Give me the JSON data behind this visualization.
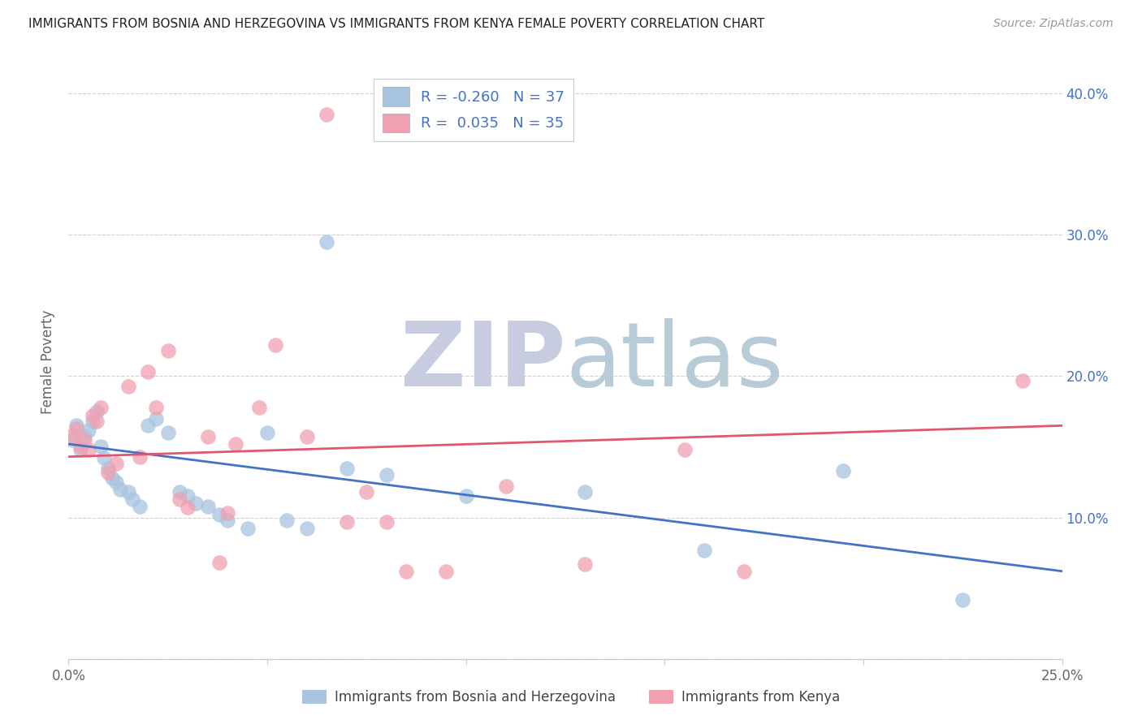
{
  "title": "IMMIGRANTS FROM BOSNIA AND HERZEGOVINA VS IMMIGRANTS FROM KENYA FEMALE POVERTY CORRELATION CHART",
  "source": "Source: ZipAtlas.com",
  "xlabel_bosnia": "Immigrants from Bosnia and Herzegovina",
  "xlabel_kenya": "Immigrants from Kenya",
  "ylabel": "Female Poverty",
  "xlim": [
    0,
    0.25
  ],
  "ylim": [
    0,
    0.42
  ],
  "xticks": [
    0.0,
    0.05,
    0.1,
    0.15,
    0.2,
    0.25
  ],
  "xtick_labels": [
    "0.0%",
    "",
    "",
    "",
    "",
    "25.0%"
  ],
  "yticks": [
    0.0,
    0.1,
    0.2,
    0.3,
    0.4
  ],
  "ytick_labels": [
    "",
    "10.0%",
    "20.0%",
    "30.0%",
    "40.0%"
  ],
  "R_bosnia": -0.26,
  "N_bosnia": 37,
  "R_kenya": 0.035,
  "N_kenya": 35,
  "color_bosnia": "#a8c4e0",
  "color_kenya": "#f0a0b0",
  "line_color_bosnia": "#4472c4",
  "line_color_kenya": "#e05870",
  "bosnia_x": [
    0.001,
    0.002,
    0.003,
    0.004,
    0.005,
    0.006,
    0.007,
    0.008,
    0.009,
    0.01,
    0.011,
    0.012,
    0.013,
    0.015,
    0.016,
    0.018,
    0.02,
    0.022,
    0.025,
    0.028,
    0.03,
    0.032,
    0.035,
    0.038,
    0.04,
    0.045,
    0.05,
    0.055,
    0.06,
    0.065,
    0.07,
    0.08,
    0.1,
    0.13,
    0.16,
    0.195,
    0.225
  ],
  "bosnia_y": [
    0.155,
    0.165,
    0.148,
    0.158,
    0.162,
    0.168,
    0.175,
    0.15,
    0.142,
    0.135,
    0.128,
    0.125,
    0.12,
    0.118,
    0.113,
    0.108,
    0.165,
    0.17,
    0.16,
    0.118,
    0.115,
    0.11,
    0.108,
    0.102,
    0.098,
    0.092,
    0.16,
    0.098,
    0.092,
    0.295,
    0.135,
    0.13,
    0.115,
    0.118,
    0.077,
    0.133,
    0.042
  ],
  "kenya_x": [
    0.001,
    0.002,
    0.003,
    0.004,
    0.005,
    0.006,
    0.007,
    0.008,
    0.01,
    0.012,
    0.015,
    0.018,
    0.02,
    0.022,
    0.025,
    0.028,
    0.03,
    0.035,
    0.038,
    0.04,
    0.042,
    0.048,
    0.052,
    0.06,
    0.065,
    0.07,
    0.075,
    0.08,
    0.085,
    0.095,
    0.11,
    0.13,
    0.155,
    0.17,
    0.24
  ],
  "kenya_y": [
    0.158,
    0.163,
    0.15,
    0.155,
    0.148,
    0.172,
    0.168,
    0.178,
    0.132,
    0.138,
    0.193,
    0.143,
    0.203,
    0.178,
    0.218,
    0.113,
    0.107,
    0.157,
    0.068,
    0.103,
    0.152,
    0.178,
    0.222,
    0.157,
    0.385,
    0.097,
    0.118,
    0.097,
    0.062,
    0.062,
    0.122,
    0.067,
    0.148,
    0.062,
    0.197
  ],
  "bos_line_x0": 0.0,
  "bos_line_y0": 0.152,
  "bos_line_x1": 0.25,
  "bos_line_y1": 0.062,
  "ken_line_x0": 0.0,
  "ken_line_y0": 0.143,
  "ken_line_x1": 0.25,
  "ken_line_y1": 0.165
}
